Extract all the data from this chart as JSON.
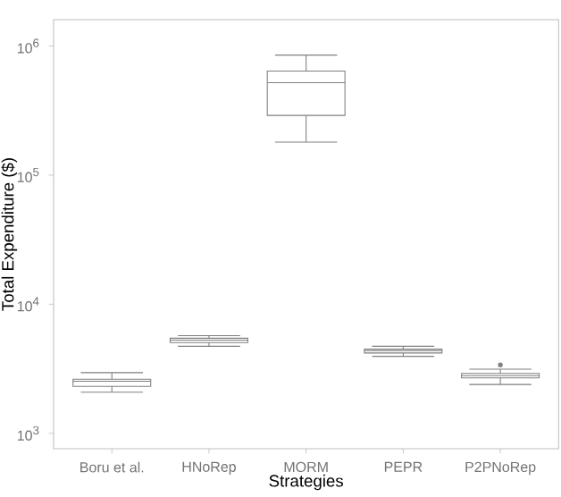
{
  "chart_data": {
    "type": "box",
    "xlabel": "Strategies",
    "ylabel": "Total Expenditure ($)",
    "categories": [
      "Boru et al.",
      "HNoRep",
      "MORM",
      "PEPR",
      "P2PNoRep"
    ],
    "boxes": [
      {
        "low": 2080,
        "q1": 2310,
        "median": 2530,
        "q3": 2620,
        "high": 2950
      },
      {
        "low": 4720,
        "q1": 5050,
        "median": 5270,
        "q3": 5450,
        "high": 5700
      },
      {
        "low": 180000,
        "q1": 290000,
        "median": 520000,
        "q3": 640000,
        "high": 850000
      },
      {
        "low": 3950,
        "q1": 4190,
        "median": 4380,
        "q3": 4490,
        "high": 4720
      },
      {
        "low": 2390,
        "q1": 2690,
        "median": 2800,
        "q3": 2910,
        "high": 3140,
        "outliers": [
          3390
        ]
      }
    ],
    "color": "#7f7f7f",
    "log": "y",
    "grid": false,
    "ylim": [
      760,
      1600000
    ],
    "yticks": [
      {
        "value": 1000,
        "label": "10$^{3}$"
      },
      {
        "value": 10000,
        "label": "10$^{4}$"
      },
      {
        "value": 100000,
        "label": "10$^{5}$"
      },
      {
        "value": 1000000,
        "label": "10$^{6}$"
      }
    ]
  }
}
